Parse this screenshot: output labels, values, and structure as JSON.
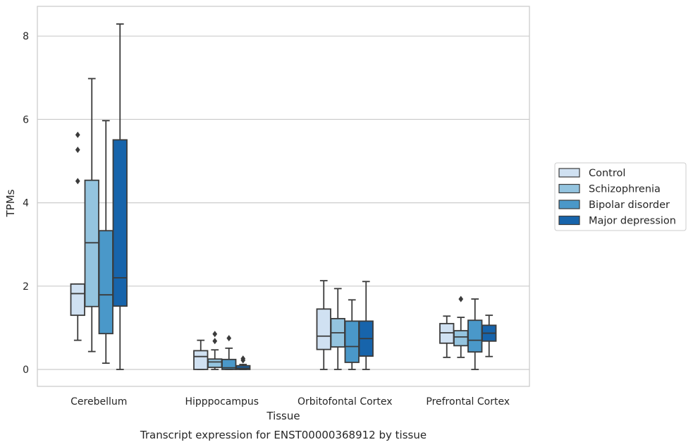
{
  "chart_data": {
    "type": "box",
    "title": "Transcript expression for ENST00000368912 by tissue",
    "xlabel": "Tissue",
    "ylabel": "TPMs",
    "ylim": [
      -0.4,
      8.7
    ],
    "yticks": [
      0,
      2,
      4,
      6,
      8
    ],
    "grid": "horizontal",
    "legend_position": "right",
    "categories": [
      "Cerebellum",
      "Hipppocampus",
      "Orbitofontal Cortex",
      "Prefrontal Cortex"
    ],
    "series": [
      {
        "name": "Control",
        "color": "#d0e1f2",
        "boxes": [
          {
            "whisker_low": 0.7,
            "q1": 1.3,
            "median": 1.82,
            "q3": 2.05,
            "whisker_high": 2.05,
            "outliers": [
              4.52,
              5.27,
              5.63
            ]
          },
          {
            "whisker_low": 0.0,
            "q1": 0.0,
            "median": 0.31,
            "q3": 0.45,
            "whisker_high": 0.7,
            "outliers": []
          },
          {
            "whisker_low": 0.0,
            "q1": 0.48,
            "median": 0.8,
            "q3": 1.45,
            "whisker_high": 2.13,
            "outliers": []
          },
          {
            "whisker_low": 0.29,
            "q1": 0.63,
            "median": 0.88,
            "q3": 1.1,
            "whisker_high": 1.28,
            "outliers": []
          }
        ]
      },
      {
        "name": "Schizophrenia",
        "color": "#94c4df",
        "boxes": [
          {
            "whisker_low": 0.43,
            "q1": 1.51,
            "median": 3.04,
            "q3": 4.54,
            "whisker_high": 6.98,
            "outliers": []
          },
          {
            "whisker_low": 0.0,
            "q1": 0.05,
            "median": 0.18,
            "q3": 0.25,
            "whisker_high": 0.47,
            "outliers": [
              0.68,
              0.85
            ]
          },
          {
            "whisker_low": 0.0,
            "q1": 0.54,
            "median": 0.88,
            "q3": 1.22,
            "whisker_high": 1.94,
            "outliers": []
          },
          {
            "whisker_low": 0.29,
            "q1": 0.57,
            "median": 0.78,
            "q3": 0.93,
            "whisker_high": 1.25,
            "outliers": [
              1.69
            ]
          }
        ]
      },
      {
        "name": "Bipolar disorder",
        "color": "#4a98c9",
        "boxes": [
          {
            "whisker_low": 0.15,
            "q1": 0.86,
            "median": 1.79,
            "q3": 3.33,
            "whisker_high": 5.97,
            "outliers": []
          },
          {
            "whisker_low": 0.0,
            "q1": 0.0,
            "median": 0.04,
            "q3": 0.24,
            "whisker_high": 0.51,
            "outliers": [
              0.75
            ]
          },
          {
            "whisker_low": 0.0,
            "q1": 0.17,
            "median": 0.55,
            "q3": 1.16,
            "whisker_high": 1.67,
            "outliers": []
          },
          {
            "whisker_low": 0.0,
            "q1": 0.42,
            "median": 0.7,
            "q3": 1.18,
            "whisker_high": 1.69,
            "outliers": []
          }
        ]
      },
      {
        "name": "Major depression",
        "color": "#1764ab",
        "boxes": [
          {
            "whisker_low": 0.0,
            "q1": 1.52,
            "median": 2.2,
            "q3": 5.51,
            "whisker_high": 8.29,
            "outliers": []
          },
          {
            "whisker_low": 0.0,
            "q1": 0.0,
            "median": 0.03,
            "q3": 0.09,
            "whisker_high": 0.12,
            "outliers": [
              0.22,
              0.26
            ]
          },
          {
            "whisker_low": 0.0,
            "q1": 0.32,
            "median": 0.74,
            "q3": 1.16,
            "whisker_high": 2.11,
            "outliers": []
          },
          {
            "whisker_low": 0.31,
            "q1": 0.68,
            "median": 0.87,
            "q3": 1.06,
            "whisker_high": 1.3,
            "outliers": []
          }
        ]
      }
    ]
  }
}
